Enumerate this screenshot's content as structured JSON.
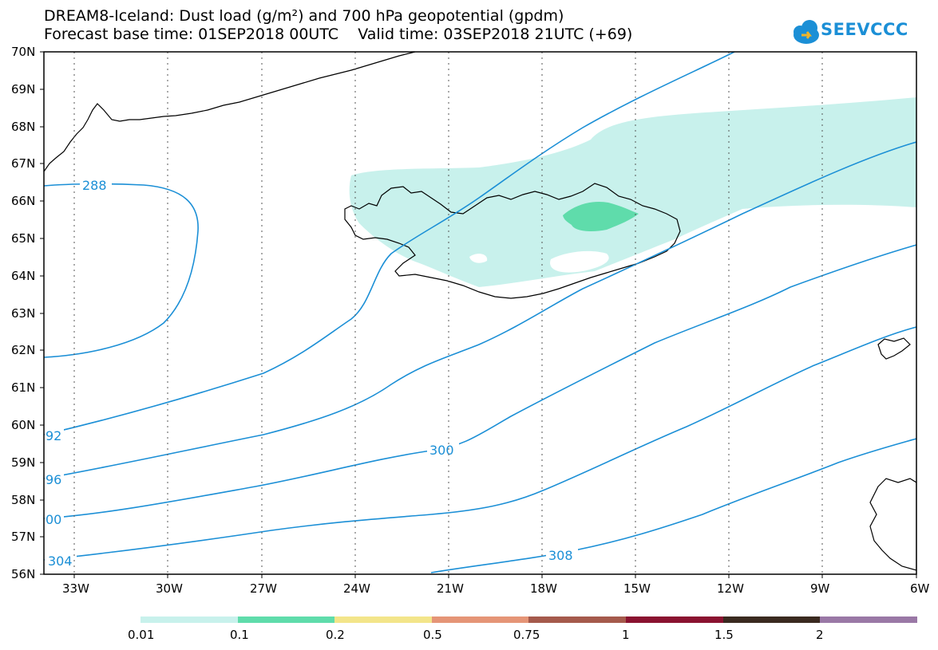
{
  "header": {
    "title_line1": "DREAM8-Iceland: Dust load (g/m²) and 700 hPa geopotential (gpdm)",
    "title_line2": "Forecast base time: 01SEP2018 00UTC    Valid time: 03SEP2018 21UTC (+69)",
    "logo_text": "SEEVCCC"
  },
  "colors": {
    "contour": "#1b8fd6",
    "dust_low": "#c8f1ec",
    "dust_mid": "#5fdcab",
    "coast": "#000000"
  },
  "map": {
    "lat_labels": [
      "70N",
      "69N",
      "68N",
      "67N",
      "66N",
      "65N",
      "64N",
      "63N",
      "62N",
      "61N",
      "60N",
      "59N",
      "58N",
      "57N",
      "56N"
    ],
    "lon_labels": [
      "33W",
      "30W",
      "27W",
      "24W",
      "21W",
      "18W",
      "15W",
      "12W",
      "9W",
      "6W"
    ],
    "contour_labels": [
      {
        "text": "288"
      },
      {
        "text": "92"
      },
      {
        "text": "96"
      },
      {
        "text": "00"
      },
      {
        "text": "304"
      },
      {
        "text": "300"
      },
      {
        "text": "308"
      }
    ]
  },
  "colorbar": {
    "colors": [
      "#c8f1ec",
      "#5fdcab",
      "#f3e58a",
      "#e59577",
      "#a55a4c",
      "#8a1230",
      "#3a2a20",
      "#9a78a6"
    ],
    "labels": [
      "0.01",
      "0.1",
      "0.2",
      "0.5",
      "0.75",
      "1",
      "1.5",
      "2"
    ]
  }
}
